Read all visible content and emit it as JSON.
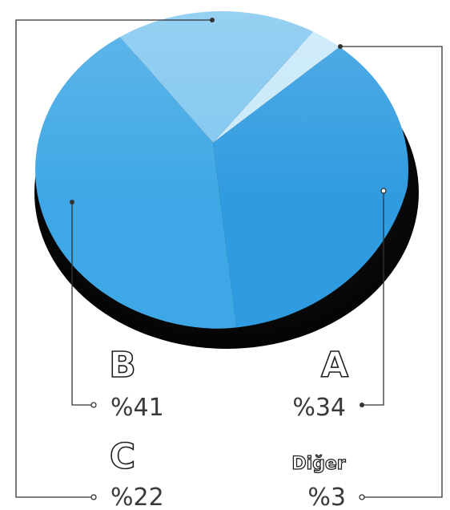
{
  "chart_data": {
    "type": "pie",
    "slices": [
      {
        "label": "A",
        "value_label": "%34",
        "value": 34,
        "color": "#2f9be0"
      },
      {
        "label": "B",
        "value_label": "%41",
        "value": 41,
        "color": "#3ea7e5"
      },
      {
        "label": "C",
        "value_label": "%22",
        "value": 22,
        "color": "#7fc6ef"
      },
      {
        "label": "Diğer",
        "value_label": "%3",
        "value": 3,
        "color": "#c7e8fa"
      }
    ],
    "style": "3d",
    "shadow_color": "#0b0b0b"
  }
}
